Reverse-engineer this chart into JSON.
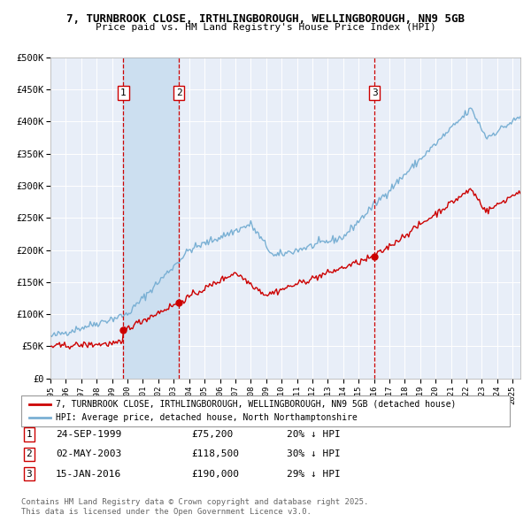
{
  "title_line1": "7, TURNBROOK CLOSE, IRTHLINGBOROUGH, WELLINGBOROUGH, NN9 5GB",
  "title_line2": "Price paid vs. HM Land Registry's House Price Index (HPI)",
  "ylim": [
    0,
    500000
  ],
  "yticks": [
    0,
    50000,
    100000,
    150000,
    200000,
    250000,
    300000,
    350000,
    400000,
    450000,
    500000
  ],
  "ytick_labels": [
    "£0",
    "£50K",
    "£100K",
    "£150K",
    "£200K",
    "£250K",
    "£300K",
    "£350K",
    "£400K",
    "£450K",
    "£500K"
  ],
  "background_color": "#ffffff",
  "plot_bg_color": "#e8eef8",
  "grid_color": "#ffffff",
  "sale_color": "#cc0000",
  "hpi_color": "#7ab0d4",
  "shade_color": "#ccdff0",
  "dashed_line_color": "#cc0000",
  "marker_color": "#cc0000",
  "sale_events": [
    {
      "label": "1",
      "date_num": 1999.73,
      "price": 75200,
      "pct": "20% ↓ HPI",
      "date_str": "24-SEP-1999"
    },
    {
      "label": "2",
      "date_num": 2003.33,
      "price": 118500,
      "pct": "30% ↓ HPI",
      "date_str": "02-MAY-2003"
    },
    {
      "label": "3",
      "date_num": 2016.04,
      "price": 190000,
      "pct": "29% ↓ HPI",
      "date_str": "15-JAN-2016"
    }
  ],
  "legend_sale_label": "7, TURNBROOK CLOSE, IRTHLINGBOROUGH, WELLINGBOROUGH, NN9 5GB (detached house)",
  "legend_hpi_label": "HPI: Average price, detached house, North Northamptonshire",
  "footnote_line1": "Contains HM Land Registry data © Crown copyright and database right 2025.",
  "footnote_line2": "This data is licensed under the Open Government Licence v3.0.",
  "xtick_years": [
    1995,
    1996,
    1997,
    1998,
    1999,
    2000,
    2001,
    2002,
    2003,
    2004,
    2005,
    2006,
    2007,
    2008,
    2009,
    2010,
    2011,
    2012,
    2013,
    2014,
    2015,
    2016,
    2017,
    2018,
    2019,
    2020,
    2021,
    2022,
    2023,
    2024,
    2025
  ]
}
